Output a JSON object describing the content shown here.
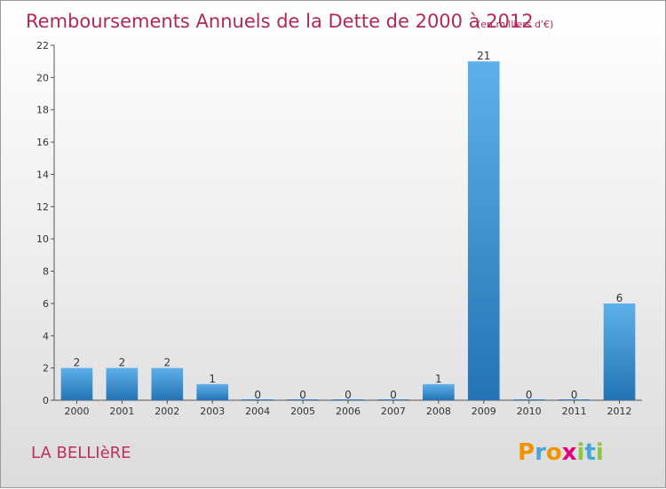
{
  "chart_data": {
    "type": "bar",
    "title": "Remboursements Annuels de la Dette de 2000 à 2012",
    "subtitle": "(en milliers d'€)",
    "categories": [
      "2000",
      "2001",
      "2002",
      "2003",
      "2004",
      "2005",
      "2006",
      "2007",
      "2008",
      "2009",
      "2010",
      "2011",
      "2012"
    ],
    "values": [
      2,
      2,
      2,
      1,
      0,
      0,
      0,
      0,
      1,
      21,
      0,
      0,
      6
    ],
    "ylim": [
      0,
      22
    ],
    "yticks": [
      0,
      2,
      4,
      6,
      8,
      10,
      12,
      14,
      16,
      18,
      20,
      22
    ],
    "xlabel": "",
    "ylabel": "",
    "grid": false,
    "bar_color": "#3d8fd6"
  },
  "commune_name": "LA BELLIèRE",
  "logo": {
    "text": "Proxiti",
    "letters": [
      "P",
      "r",
      "o",
      "x",
      "i",
      "t",
      "i"
    ],
    "colors": [
      "#f29400",
      "#4aa6d8",
      "#f29400",
      "#e2007a",
      "#8dc63f",
      "#4aa6d8",
      "#8dc63f"
    ]
  }
}
